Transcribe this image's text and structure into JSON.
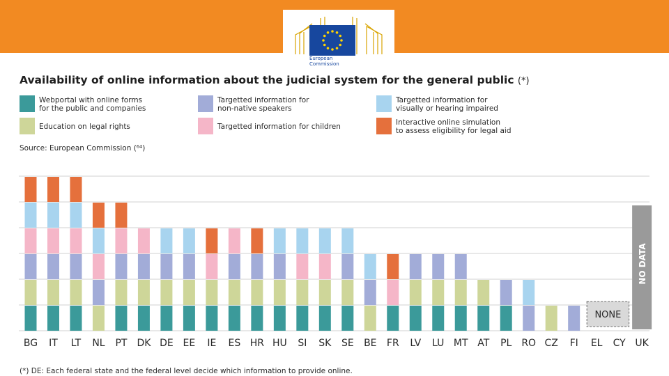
{
  "header": {
    "logo_text": "European Commission",
    "logo_lines": [
      "European",
      "Commission"
    ]
  },
  "title": "Availability of online information about the judicial system for the general public",
  "title_note": "(*)",
  "legend": [
    {
      "key": "webportal",
      "label": "Webportal with online forms for the public and companies",
      "lines": [
        "Webportal with online forms",
        "for the public and companies"
      ],
      "color": "#3b9a9a"
    },
    {
      "key": "non_native",
      "label": "Targetted information for non-native speakers",
      "lines": [
        "Targetted information for",
        "non-native speakers"
      ],
      "color": "#a2acd8"
    },
    {
      "key": "impaired",
      "label": "Targetted information for visually or hearing impaired",
      "lines": [
        "Targetted information for",
        "visually or hearing impaired"
      ],
      "color": "#a8d4ef"
    },
    {
      "key": "education",
      "label": "Education on legal rights",
      "lines": [
        "Education on legal rights"
      ],
      "color": "#ced699"
    },
    {
      "key": "children",
      "label": "Targetted information for children",
      "lines": [
        "Targetted information for children"
      ],
      "color": "#f5b6c8"
    },
    {
      "key": "simulation",
      "label": "Interactive online simulation to assess eligibility for legal aid",
      "lines": [
        "Interactive online simulation",
        "to assess eligibility for legal aid"
      ],
      "color": "#e5703c"
    }
  ],
  "source": "Source: European Commission (⁶⁴)",
  "footnote": "(*) DE: Each federal state and the federal level decide which information to provide online.",
  "chart_data": {
    "type": "bar",
    "stacked": true,
    "categories": [
      "BG",
      "IT",
      "LT",
      "NL",
      "PT",
      "DK",
      "DE",
      "EE",
      "IE",
      "ES",
      "HR",
      "HU",
      "SI",
      "SK",
      "SE",
      "BE",
      "FR",
      "LV",
      "LU",
      "MT",
      "AT",
      "PL",
      "RO",
      "CZ",
      "FI",
      "EL",
      "CY",
      "UK"
    ],
    "series_order_bottom_to_top": [
      "webportal",
      "education",
      "non_native",
      "children",
      "impaired",
      "simulation"
    ],
    "stacks": [
      [
        "webportal",
        "education",
        "non_native",
        "children",
        "impaired",
        "simulation"
      ],
      [
        "webportal",
        "education",
        "non_native",
        "children",
        "impaired",
        "simulation"
      ],
      [
        "webportal",
        "education",
        "non_native",
        "children",
        "impaired",
        "simulation"
      ],
      [
        "education",
        "non_native",
        "children",
        "impaired",
        "simulation"
      ],
      [
        "webportal",
        "education",
        "non_native",
        "children",
        "simulation"
      ],
      [
        "webportal",
        "education",
        "non_native",
        "children"
      ],
      [
        "webportal",
        "education",
        "non_native",
        "impaired"
      ],
      [
        "webportal",
        "education",
        "non_native",
        "impaired"
      ],
      [
        "webportal",
        "education",
        "children",
        "simulation"
      ],
      [
        "webportal",
        "education",
        "non_native",
        "children"
      ],
      [
        "webportal",
        "education",
        "non_native",
        "simulation"
      ],
      [
        "webportal",
        "education",
        "non_native",
        "impaired"
      ],
      [
        "webportal",
        "education",
        "children",
        "impaired"
      ],
      [
        "webportal",
        "education",
        "children",
        "impaired"
      ],
      [
        "webportal",
        "education",
        "non_native",
        "impaired"
      ],
      [
        "education",
        "non_native",
        "impaired"
      ],
      [
        "webportal",
        "children",
        "simulation"
      ],
      [
        "webportal",
        "education",
        "non_native"
      ],
      [
        "webportal",
        "education",
        "non_native"
      ],
      [
        "webportal",
        "education",
        "non_native"
      ],
      [
        "webportal",
        "education"
      ],
      [
        "webportal",
        "non_native"
      ],
      [
        "non_native",
        "impaired"
      ],
      [
        "education"
      ],
      [
        "non_native"
      ],
      [],
      [],
      []
    ],
    "annotations": [
      {
        "category": "EL",
        "span_to": "CY",
        "text": "NONE"
      },
      {
        "category": "UK",
        "text": "NO DATA"
      }
    ],
    "ylim": [
      0,
      6
    ],
    "grid": true,
    "xlabel": "",
    "ylabel": ""
  }
}
